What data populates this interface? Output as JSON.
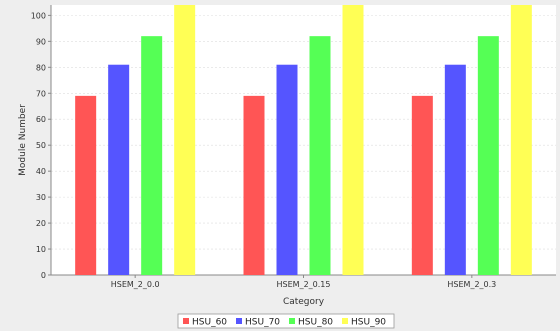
{
  "chart_data": {
    "type": "bar",
    "title": "",
    "xlabel": "Category",
    "ylabel": "Module Number",
    "categories": [
      "HSEM_2_0.0",
      "HSEM_2_0.15",
      "HSEM_2_0.3"
    ],
    "series": [
      {
        "name": "HSU_60",
        "color": "#ff5555",
        "values": [
          69,
          69,
          69
        ]
      },
      {
        "name": "HSU_70",
        "color": "#5555ff",
        "values": [
          81,
          81,
          81
        ]
      },
      {
        "name": "HSU_80",
        "color": "#55ff55",
        "values": [
          92,
          92,
          92
        ]
      },
      {
        "name": "HSU_90",
        "color": "#ffff55",
        "values": [
          104,
          104,
          104
        ]
      }
    ],
    "ylim": [
      0,
      104
    ],
    "yticks": [
      0,
      10,
      20,
      30,
      40,
      50,
      60,
      70,
      80,
      90,
      100
    ],
    "grid": true,
    "legend_position": "bottom"
  },
  "colors": {
    "plot_background": "#ffffff",
    "page_background": "#eeeeee",
    "gridline": "#dddddd",
    "axis": "#888888"
  }
}
